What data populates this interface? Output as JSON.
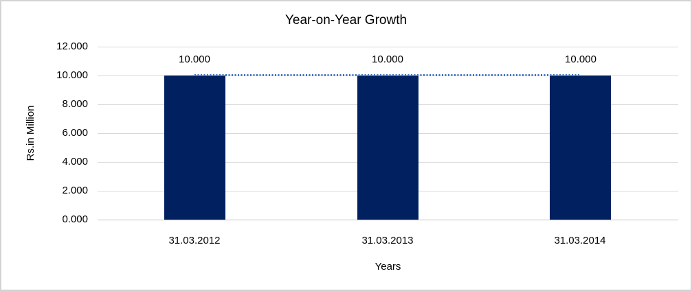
{
  "chart_data": {
    "type": "bar",
    "title": "Year-on-Year Growth",
    "categories": [
      "31.03.2012",
      "31.03.2013",
      "31.03.2014"
    ],
    "values": [
      10.0,
      10.0,
      10.0
    ],
    "data_labels": [
      "10.000",
      "10.000",
      "10.000"
    ],
    "xlabel": "Years",
    "ylabel": "Rs.in Million",
    "ylim": [
      0,
      12
    ],
    "ytick_labels": [
      "12.000",
      "10.000",
      "8.000",
      "6.000",
      "4.000",
      "2.000",
      "0.000"
    ],
    "grid": true,
    "legend_position": "none",
    "trendline": {
      "style": "dotted",
      "at_value": 10.0,
      "span": "bar1-center to bar3-center"
    },
    "colors": {
      "bar": "#002060",
      "trendline": "#4472c4",
      "gridline": "#d9d9d9",
      "axis_line": "#bfbfbf",
      "chart_border": "#d3d3d3",
      "text": "#000000"
    }
  }
}
